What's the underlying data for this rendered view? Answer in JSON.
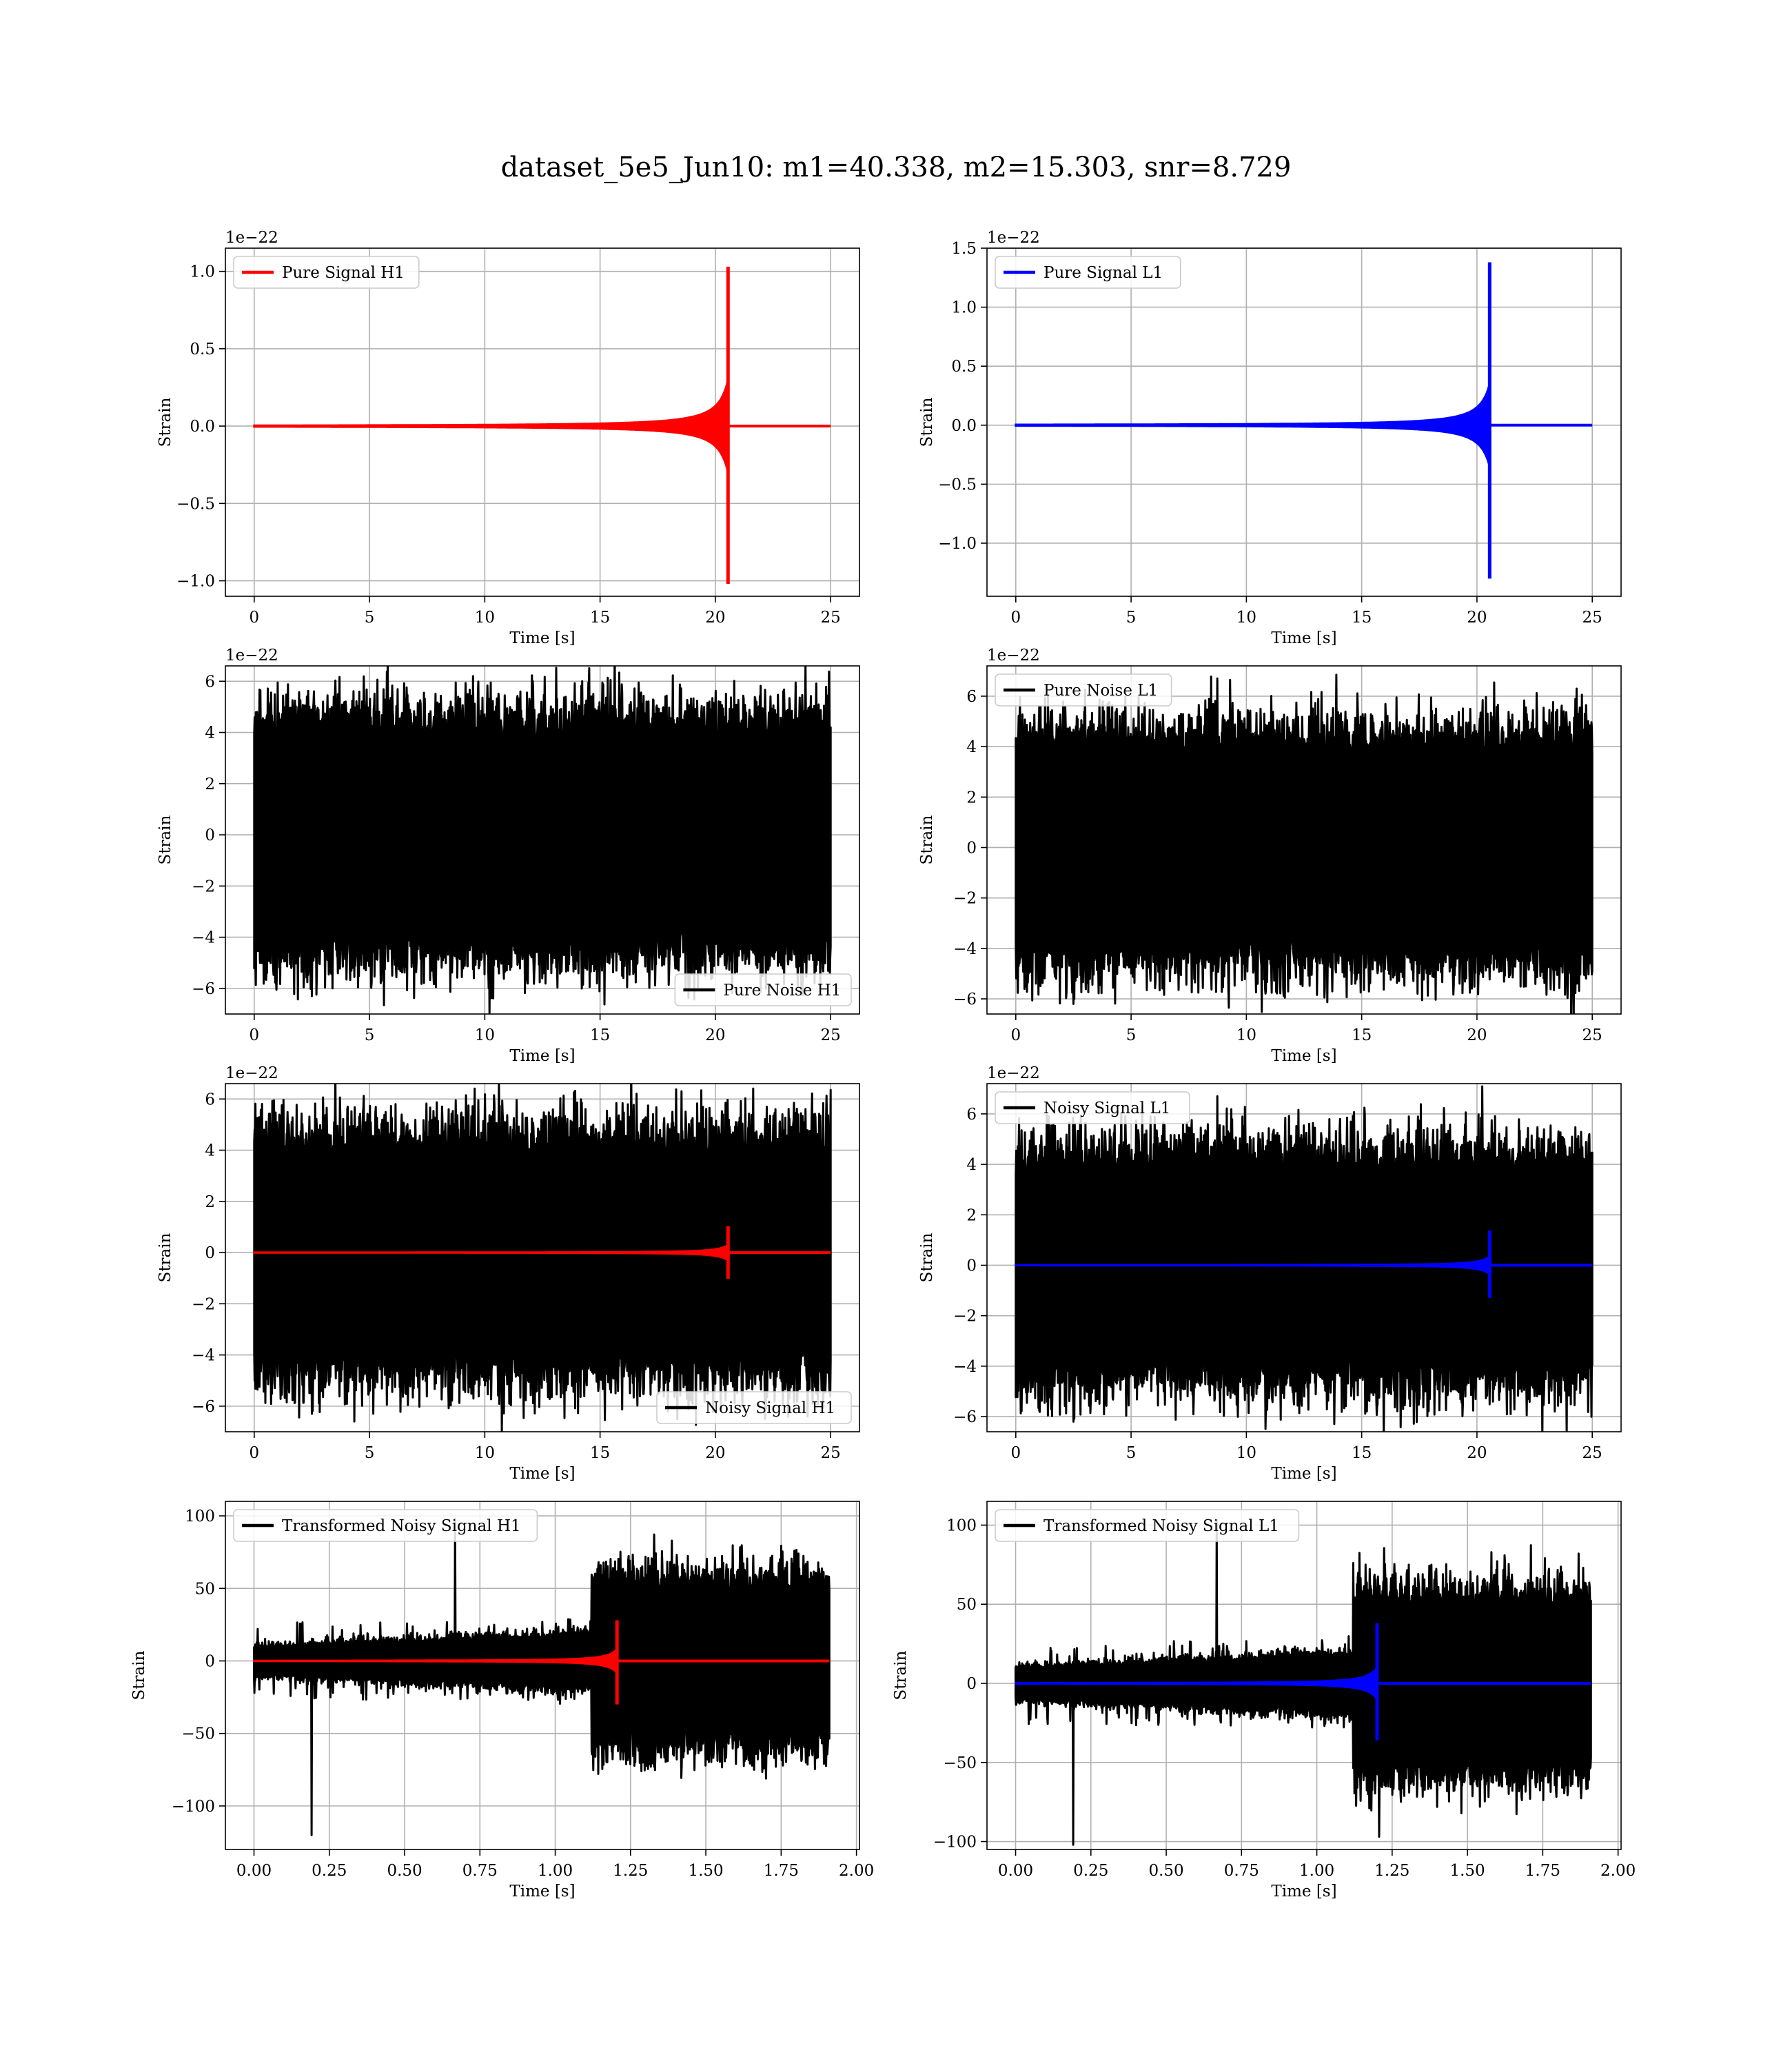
{
  "figure": {
    "title": "dataset_5e5_Jun10: m1=40.338, m2=15.303, snr=8.729"
  },
  "chart_data": [
    {
      "type": "line",
      "xlabel": "Time [s]",
      "ylabel": "Strain",
      "xlim": [
        -1.25,
        26.25
      ],
      "ylim": [
        -1.1,
        1.15
      ],
      "offset_label": "1e−22",
      "xticks": [
        0,
        5,
        10,
        15,
        20,
        25
      ],
      "xtick_labels": [
        "0",
        "5",
        "10",
        "15",
        "20",
        "25"
      ],
      "yticks": [
        -1.0,
        -0.5,
        0.0,
        0.5,
        1.0
      ],
      "ytick_labels": [
        "−1.0",
        "−0.5",
        "0.0",
        "0.5",
        "1.0"
      ],
      "grid": true,
      "legend": "top-left",
      "series": [
        {
          "name": "Pure Signal H1",
          "color": "#ff0000",
          "kind": "chirp",
          "x_range": [
            0,
            25
          ],
          "merger": 20.55,
          "amplitude": 0.3,
          "peak": 1.03,
          "peak_low": -1.02
        }
      ]
    },
    {
      "type": "line",
      "xlabel": "Time [s]",
      "ylabel": "Strain",
      "xlim": [
        -1.25,
        26.25
      ],
      "ylim": [
        -1.45,
        1.5
      ],
      "offset_label": "1e−22",
      "xticks": [
        0,
        5,
        10,
        15,
        20,
        25
      ],
      "xtick_labels": [
        "0",
        "5",
        "10",
        "15",
        "20",
        "25"
      ],
      "yticks": [
        -1.0,
        -0.5,
        0.0,
        0.5,
        1.0,
        1.5
      ],
      "ytick_labels": [
        "−1.0",
        "−0.5",
        "0.0",
        "0.5",
        "1.0",
        "1.5"
      ],
      "grid": true,
      "legend": "top-left",
      "series": [
        {
          "name": "Pure Signal L1",
          "color": "#0000ff",
          "kind": "chirp",
          "x_range": [
            0,
            25
          ],
          "merger": 20.55,
          "amplitude": 0.35,
          "peak": 1.38,
          "peak_low": -1.3
        }
      ]
    },
    {
      "type": "line",
      "xlabel": "Time [s]",
      "ylabel": "Strain",
      "xlim": [
        -1.25,
        26.25
      ],
      "ylim": [
        -7.0,
        6.6
      ],
      "offset_label": "1e−22",
      "xticks": [
        0,
        5,
        10,
        15,
        20,
        25
      ],
      "xtick_labels": [
        "0",
        "5",
        "10",
        "15",
        "20",
        "25"
      ],
      "yticks": [
        -6,
        -4,
        -2,
        0,
        2,
        4,
        6
      ],
      "ytick_labels": [
        "−6",
        "−4",
        "−2",
        "0",
        "2",
        "4",
        "6"
      ],
      "grid": true,
      "legend": "bottom-right",
      "series": [
        {
          "name": "Pure Noise H1",
          "color": "#000000",
          "kind": "noise",
          "x_range": [
            0,
            25
          ],
          "band": 3.6,
          "max": 5.95,
          "min": -6.3
        }
      ]
    },
    {
      "type": "line",
      "xlabel": "Time [s]",
      "ylabel": "Strain",
      "xlim": [
        -1.25,
        26.25
      ],
      "ylim": [
        -6.6,
        7.2
      ],
      "offset_label": "1e−22",
      "xticks": [
        0,
        5,
        10,
        15,
        20,
        25
      ],
      "xtick_labels": [
        "0",
        "5",
        "10",
        "15",
        "20",
        "25"
      ],
      "yticks": [
        -6,
        -4,
        -2,
        0,
        2,
        4,
        6
      ],
      "ytick_labels": [
        "−6",
        "−4",
        "−2",
        "0",
        "2",
        "4",
        "6"
      ],
      "grid": true,
      "legend": "top-left",
      "series": [
        {
          "name": "Pure Noise L1",
          "color": "#000000",
          "kind": "noise",
          "x_range": [
            0,
            25
          ],
          "band": 3.5,
          "max": 6.7,
          "min": -6.2
        }
      ]
    },
    {
      "type": "line",
      "xlabel": "Time [s]",
      "ylabel": "Strain",
      "xlim": [
        -1.25,
        26.25
      ],
      "ylim": [
        -7.0,
        6.6
      ],
      "offset_label": "1e−22",
      "xticks": [
        0,
        5,
        10,
        15,
        20,
        25
      ],
      "xtick_labels": [
        "0",
        "5",
        "10",
        "15",
        "20",
        "25"
      ],
      "yticks": [
        -6,
        -4,
        -2,
        0,
        2,
        4,
        6
      ],
      "ytick_labels": [
        "−6",
        "−4",
        "−2",
        "0",
        "2",
        "4",
        "6"
      ],
      "grid": true,
      "legend": "bottom-right",
      "series": [
        {
          "name": "Noisy Signal H1",
          "color": "#000000",
          "kind": "noise",
          "x_range": [
            0,
            25
          ],
          "band": 3.6,
          "max": 5.95,
          "min": -6.3
        },
        {
          "color": "#ff0000",
          "kind": "chirp",
          "x_range": [
            0,
            25
          ],
          "merger": 20.55,
          "amplitude": 0.3,
          "peak": 1.03,
          "peak_low": -1.02
        }
      ]
    },
    {
      "type": "line",
      "xlabel": "Time [s]",
      "ylabel": "Strain",
      "xlim": [
        -1.25,
        26.25
      ],
      "ylim": [
        -6.6,
        7.2
      ],
      "offset_label": "1e−22",
      "xticks": [
        0,
        5,
        10,
        15,
        20,
        25
      ],
      "xtick_labels": [
        "0",
        "5",
        "10",
        "15",
        "20",
        "25"
      ],
      "yticks": [
        -6,
        -4,
        -2,
        0,
        2,
        4,
        6
      ],
      "ytick_labels": [
        "−6",
        "−4",
        "−2",
        "0",
        "2",
        "4",
        "6"
      ],
      "grid": true,
      "legend": "top-left",
      "series": [
        {
          "name": "Noisy Signal L1",
          "color": "#000000",
          "kind": "noise",
          "x_range": [
            0,
            25
          ],
          "band": 3.5,
          "max": 6.7,
          "min": -6.2
        },
        {
          "color": "#0000ff",
          "kind": "chirp",
          "x_range": [
            0,
            25
          ],
          "merger": 20.55,
          "amplitude": 0.35,
          "peak": 1.38,
          "peak_low": -1.3
        }
      ]
    },
    {
      "type": "line",
      "xlabel": "Time [s]",
      "ylabel": "Strain",
      "xlim": [
        -0.095,
        2.01
      ],
      "ylim": [
        -130,
        110
      ],
      "offset_label": "",
      "xticks": [
        0,
        0.25,
        0.5,
        0.75,
        1.0,
        1.25,
        1.5,
        1.75,
        2.0
      ],
      "xtick_labels": [
        "0.00",
        "0.25",
        "0.50",
        "0.75",
        "1.00",
        "1.25",
        "1.50",
        "1.75",
        "2.00"
      ],
      "yticks": [
        -100,
        -50,
        0,
        50,
        100
      ],
      "ytick_labels": [
        "−100",
        "−50",
        "0",
        "50",
        "100"
      ],
      "grid": true,
      "legend": "top-left",
      "series": [
        {
          "name": "Transformed Noisy Signal H1",
          "color": "#000000",
          "kind": "whitened",
          "x_range": [
            0,
            1.91
          ],
          "jump": 1.12,
          "early": 8,
          "late": 45,
          "max": 98,
          "min": -120
        },
        {
          "color": "#ff0000",
          "kind": "chirp",
          "x_range": [
            0,
            1.91
          ],
          "merger": 1.205,
          "amplitude": 8,
          "peak": 28,
          "peak_low": -30
        }
      ]
    },
    {
      "type": "line",
      "xlabel": "Time [s]",
      "ylabel": "Strain",
      "xlim": [
        -0.095,
        2.01
      ],
      "ylim": [
        -105,
        115
      ],
      "offset_label": "",
      "xticks": [
        0,
        0.25,
        0.5,
        0.75,
        1.0,
        1.25,
        1.5,
        1.75,
        2.0
      ],
      "xtick_labels": [
        "0.00",
        "0.25",
        "0.50",
        "0.75",
        "1.00",
        "1.25",
        "1.50",
        "1.75",
        "2.00"
      ],
      "yticks": [
        -100,
        -50,
        0,
        50,
        100
      ],
      "ytick_labels": [
        "−100",
        "−50",
        "0",
        "50",
        "100"
      ],
      "grid": true,
      "legend": "top-left",
      "series": [
        {
          "name": "Transformed Noisy Signal L1",
          "color": "#000000",
          "kind": "whitened",
          "x_range": [
            0,
            1.91
          ],
          "jump": 1.12,
          "early": 8,
          "late": 45,
          "max": 103,
          "min": -102
        },
        {
          "color": "#0000ff",
          "kind": "chirp",
          "x_range": [
            0,
            1.91
          ],
          "merger": 1.2,
          "amplitude": 10,
          "peak": 38,
          "peak_low": -36
        }
      ]
    }
  ]
}
